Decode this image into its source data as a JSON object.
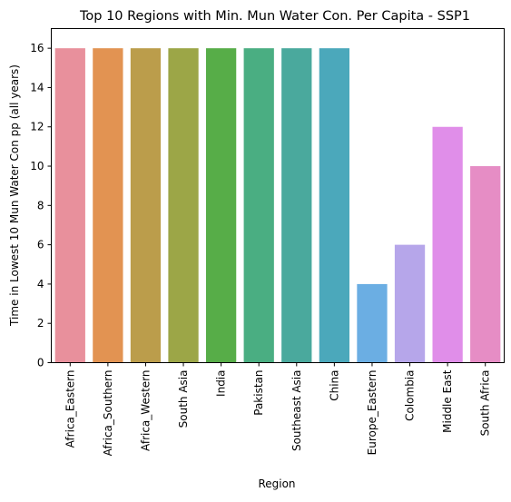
{
  "chart_data": {
    "type": "bar",
    "title": "Top 10 Regions with Min. Mun Water Con. Per Capita - SSP1",
    "xlabel": "Region",
    "ylabel": "Time in Lowest 10 Mun Water Con pp (all years)",
    "categories": [
      "Africa_Eastern",
      "Africa_Southern",
      "Africa_Western",
      "South Asia",
      "India",
      "Pakistan",
      "Southeast Asia",
      "China",
      "Europe_Eastern",
      "Colombia",
      "Middle East",
      "South Africa"
    ],
    "values": [
      16,
      16,
      16,
      16,
      16,
      16,
      16,
      16,
      4,
      6,
      12,
      10
    ],
    "colors": [
      "#e8909c",
      "#e29352",
      "#bb9d4b",
      "#9ca647",
      "#57ad48",
      "#4aae82",
      "#4aa99d",
      "#4ba8bb",
      "#6baee3",
      "#b6a6ea",
      "#e08ee9",
      "#e68dc5"
    ],
    "ylim": [
      0,
      17
    ],
    "yticks": [
      0,
      2,
      4,
      6,
      8,
      10,
      12,
      14,
      16
    ],
    "grid": false,
    "legend": "none"
  }
}
